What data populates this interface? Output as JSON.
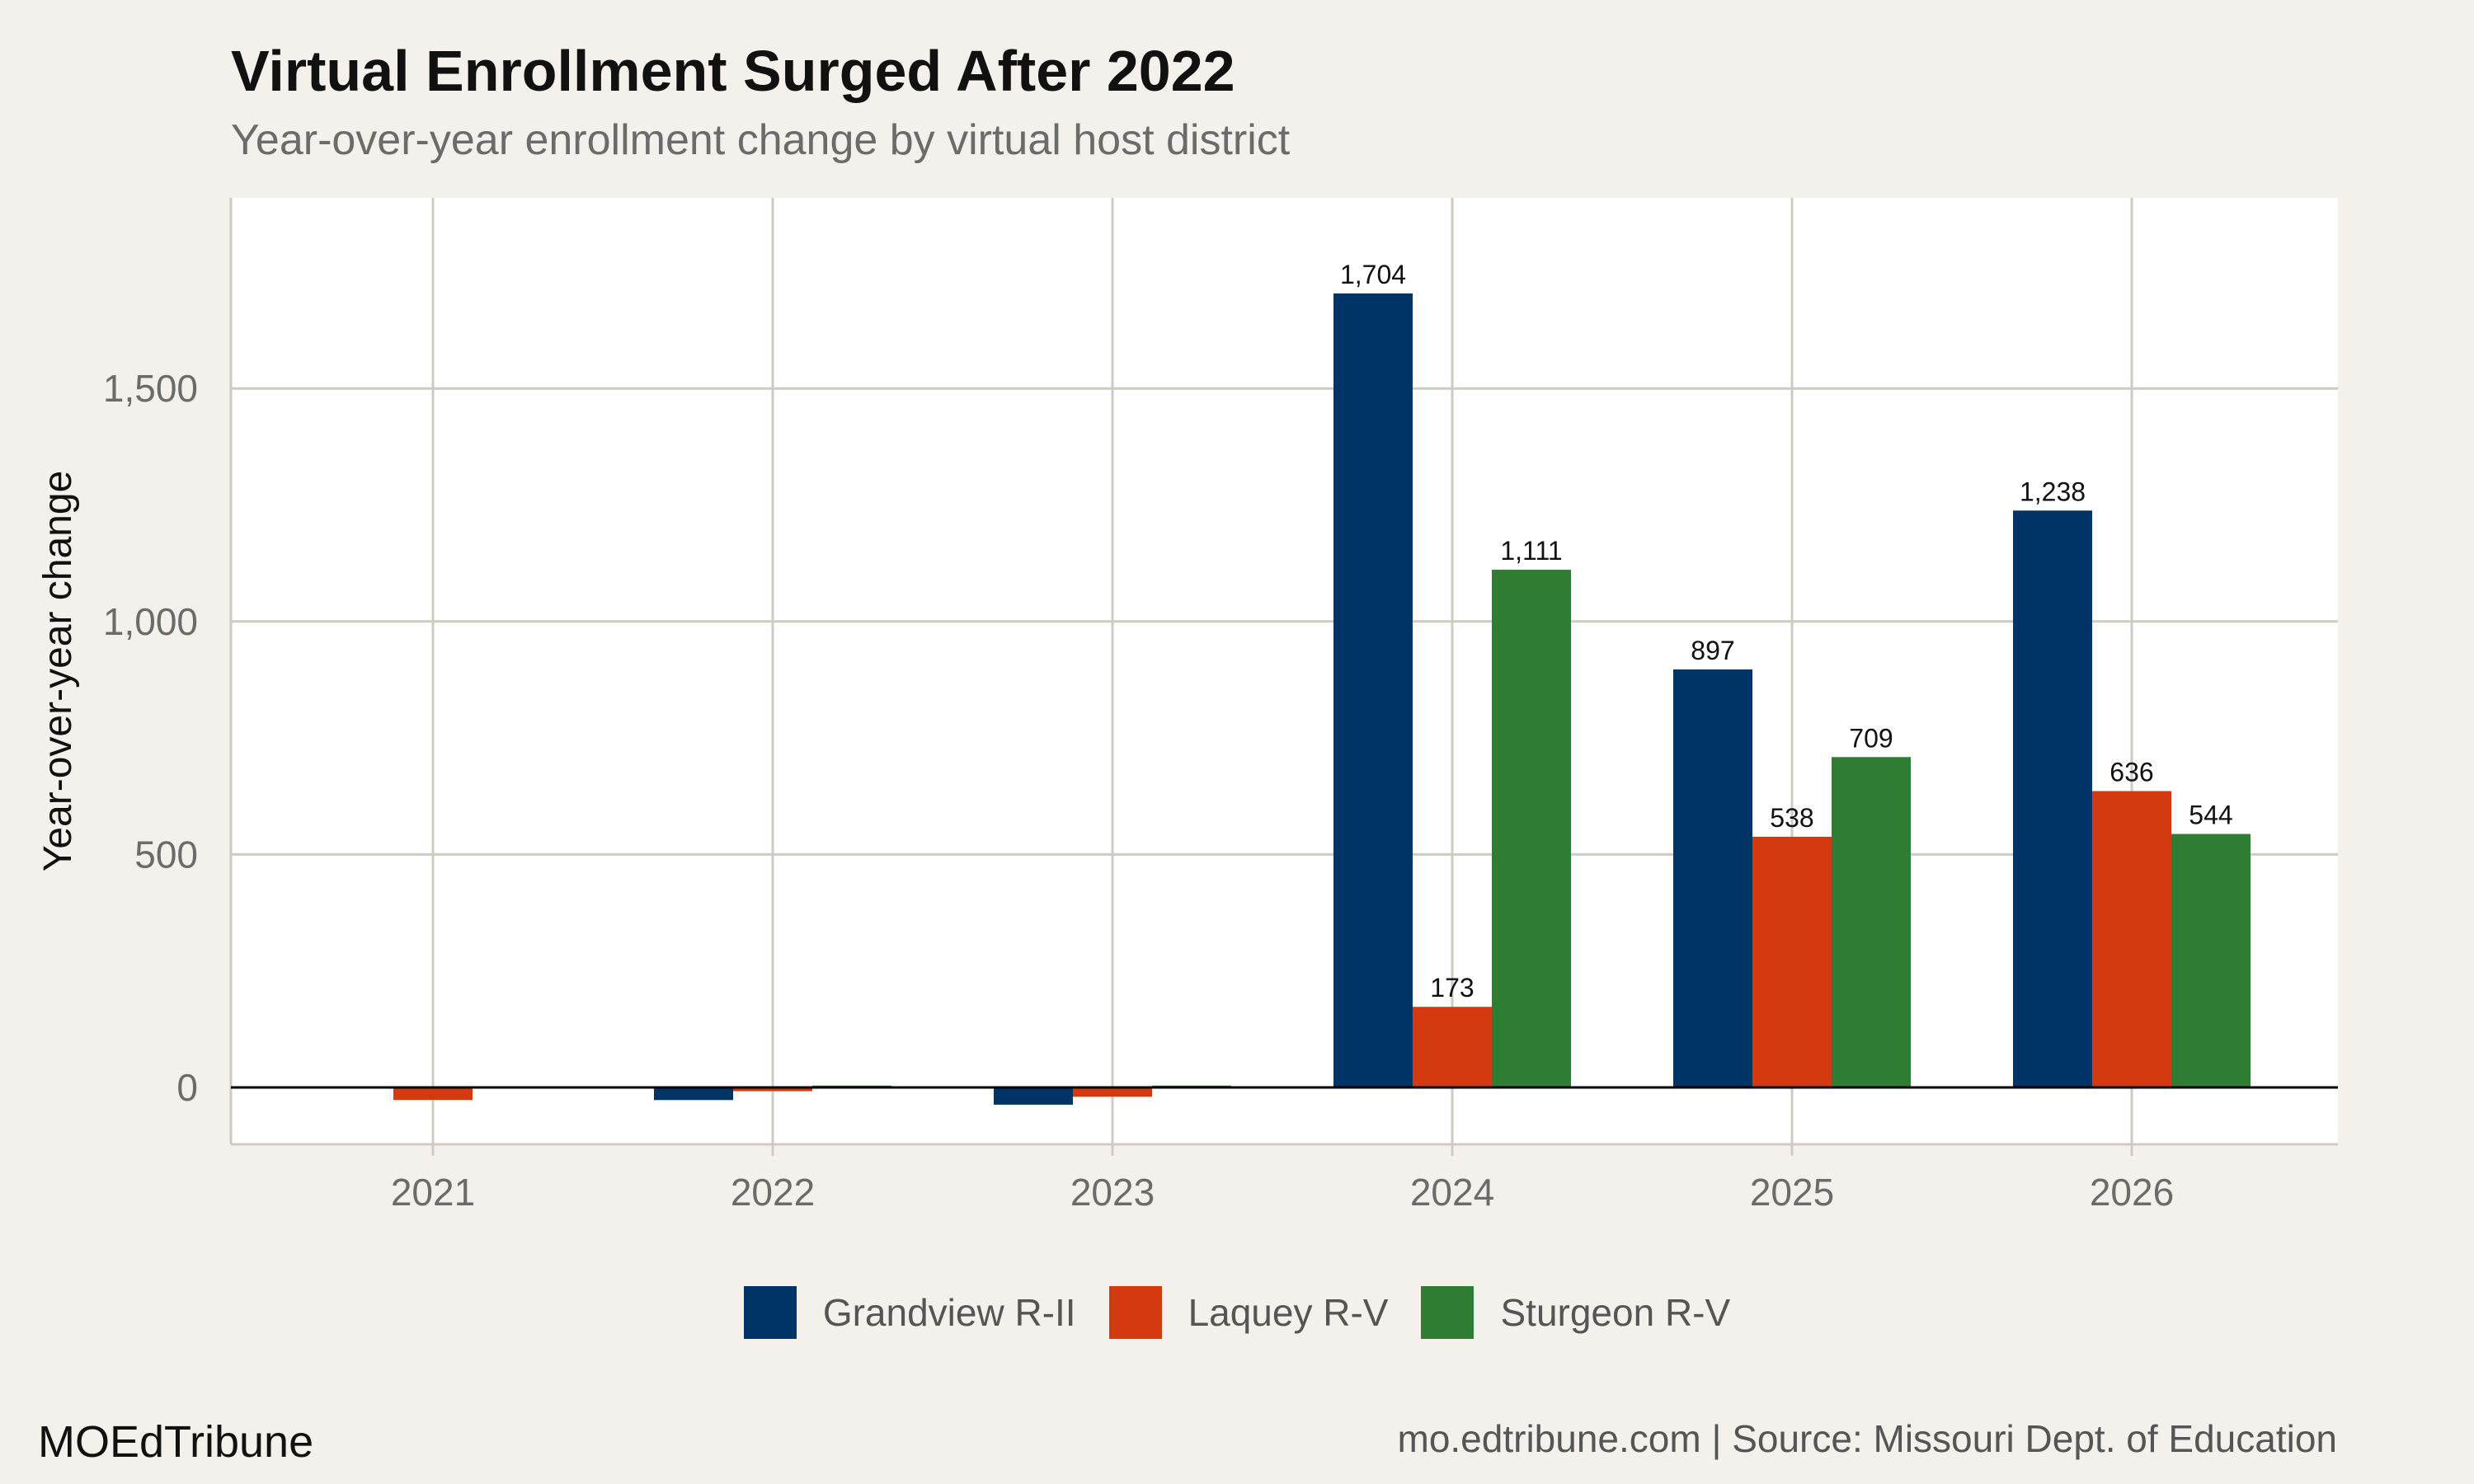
{
  "header": {
    "title": "Virtual Enrollment Surged After 2022",
    "subtitle": "Year-over-year enrollment change by virtual host district"
  },
  "footer": {
    "brand": "MOEdTribune",
    "source": "mo.edtribune.com | Source: Missouri Dept. of Education"
  },
  "colors": {
    "background": "#f4f1ec",
    "panel": "#ffffff",
    "grid": "#cfcbc4",
    "Grandview R-II": "#003366",
    "Laquey R-V": "#d33a0f",
    "Sturgeon R-V": "#2e7d32"
  },
  "chart_data": {
    "type": "bar",
    "title": "Virtual Enrollment Surged After 2022",
    "subtitle": "Year-over-year enrollment change by virtual host district",
    "xlabel": "",
    "ylabel": "Year-over-year change",
    "categories": [
      "2021",
      "2022",
      "2023",
      "2024",
      "2025",
      "2026"
    ],
    "ylim": [
      -120,
      1900
    ],
    "yticks": [
      0,
      500,
      1000,
      1500
    ],
    "ytick_labels": [
      "0",
      "500",
      "1,000",
      "1,500"
    ],
    "grid": true,
    "legend_position": "bottom",
    "series": [
      {
        "name": "Grandview R-II",
        "values": [
          null,
          -27,
          -37,
          1704,
          897,
          1238
        ],
        "labels": [
          "",
          "",
          "",
          "1,704",
          "897",
          "1,238"
        ]
      },
      {
        "name": "Laquey R-V",
        "values": [
          -27,
          -8,
          -20,
          173,
          538,
          636
        ],
        "labels": [
          "",
          "",
          "",
          "173",
          "538",
          "636"
        ]
      },
      {
        "name": "Sturgeon R-V",
        "values": [
          null,
          4,
          4,
          1111,
          709,
          544
        ],
        "labels": [
          "",
          "",
          "",
          "1,111",
          "709",
          "544"
        ]
      }
    ]
  }
}
